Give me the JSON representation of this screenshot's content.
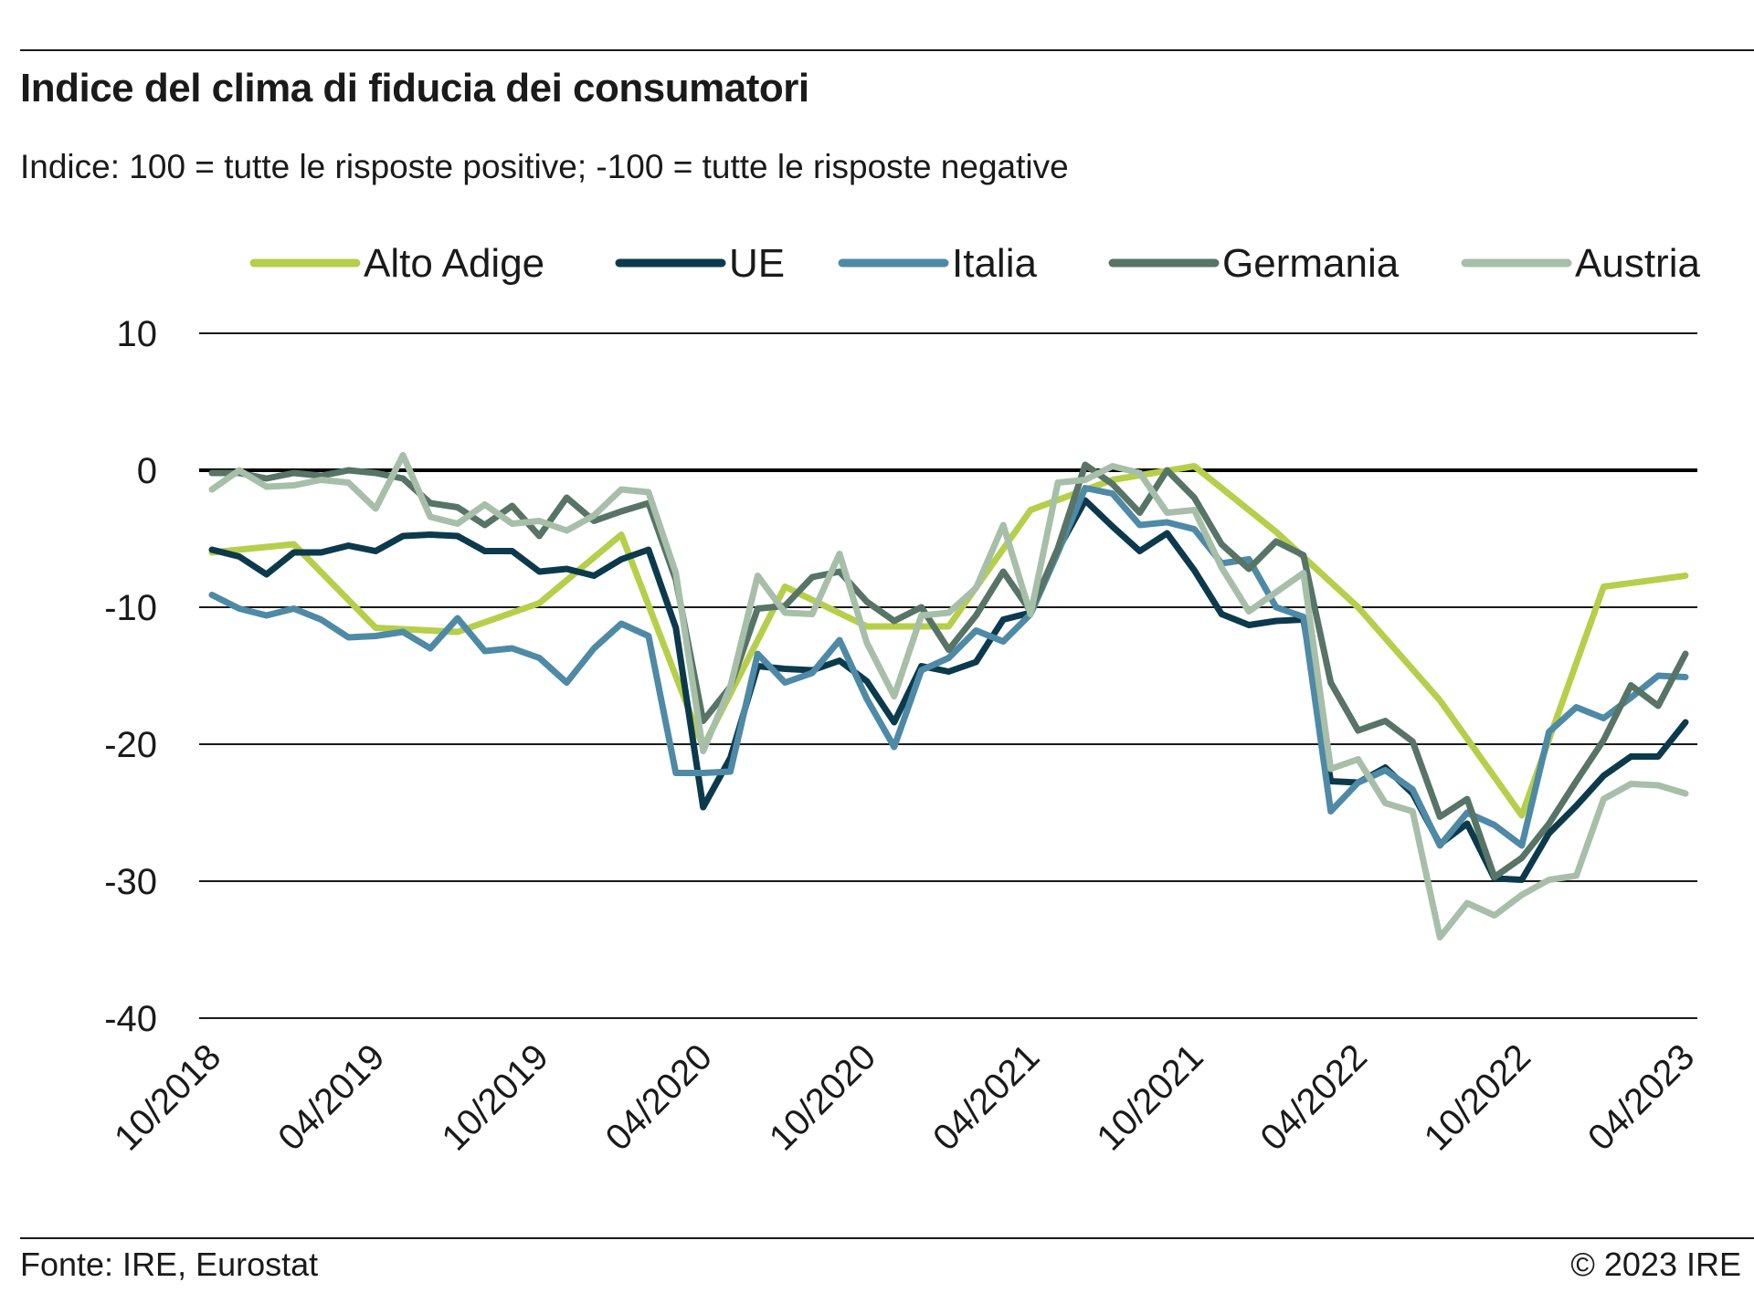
{
  "header": {
    "title": "Indice del clima di fiducia dei consumatori",
    "subtitle": "Indice: 100 = tutte le risposte positive; -100 =  tutte le risposte negative"
  },
  "footer": {
    "source": "Fonte: IRE, Eurostat",
    "copyright": "© 2023 IRE"
  },
  "chart_data": {
    "type": "line",
    "title": "Indice del clima di fiducia dei consumatori",
    "subtitle": "Indice: 100 = tutte le risposte positive; -100 =  tutte le risposte negative",
    "xlabel": "",
    "ylabel": "",
    "ylim": [
      -40,
      10
    ],
    "y_ticks": [
      10,
      0,
      -10,
      -20,
      -30,
      -40
    ],
    "y_tick_labels": [
      "10",
      "0",
      "-10",
      "-20",
      "-30",
      "-40"
    ],
    "x_start": "10/2018",
    "x_end": "04/2023",
    "x_ticks": [
      "10/2018",
      "04/2019",
      "10/2019",
      "04/2020",
      "10/2020",
      "04/2021",
      "10/2021",
      "04/2022",
      "10/2022",
      "04/2023"
    ],
    "zero_line": true,
    "grid": true,
    "legend_position": "top",
    "series": [
      {
        "name": "Alto Adige",
        "color": "#b5cf4a",
        "points": [
          [
            "10/2018",
            -6.0
          ],
          [
            "01/2019",
            -5.4
          ],
          [
            "04/2019",
            -11.5
          ],
          [
            "07/2019",
            -11.8
          ],
          [
            "10/2019",
            -9.7
          ],
          [
            "01/2020",
            -4.7
          ],
          [
            "04/2020",
            -20.2
          ],
          [
            "07/2020",
            -8.5
          ],
          [
            "10/2020",
            -11.4
          ],
          [
            "01/2021",
            -11.4
          ],
          [
            "04/2021",
            -2.9
          ],
          [
            "07/2021",
            -0.7
          ],
          [
            "10/2021",
            0.3
          ],
          [
            "01/2022",
            -4.5
          ],
          [
            "04/2022",
            -10.0
          ],
          [
            "07/2022",
            -16.8
          ],
          [
            "10/2022",
            -25.2
          ],
          [
            "01/2023",
            -8.5
          ],
          [
            "04/2023",
            -7.7
          ]
        ]
      },
      {
        "name": "UE",
        "color": "#0c3a4c",
        "points": [
          [
            "10/2018",
            -5.8
          ],
          [
            "11/2018",
            -6.3
          ],
          [
            "12/2018",
            -7.6
          ],
          [
            "01/2019",
            -6.0
          ],
          [
            "02/2019",
            -6.0
          ],
          [
            "03/2019",
            -5.5
          ],
          [
            "04/2019",
            -5.9
          ],
          [
            "05/2019",
            -4.8
          ],
          [
            "06/2019",
            -4.7
          ],
          [
            "07/2019",
            -4.8
          ],
          [
            "08/2019",
            -5.9
          ],
          [
            "09/2019",
            -5.9
          ],
          [
            "10/2019",
            -7.4
          ],
          [
            "11/2019",
            -7.2
          ],
          [
            "12/2019",
            -7.7
          ],
          [
            "01/2020",
            -6.5
          ],
          [
            "02/2020",
            -5.8
          ],
          [
            "03/2020",
            -11.5
          ],
          [
            "04/2020",
            -24.6
          ],
          [
            "05/2020",
            -21.0
          ],
          [
            "06/2020",
            -14.3
          ],
          [
            "07/2020",
            -14.5
          ],
          [
            "08/2020",
            -14.6
          ],
          [
            "09/2020",
            -13.9
          ],
          [
            "10/2020",
            -15.4
          ],
          [
            "11/2020",
            -18.4
          ],
          [
            "12/2020",
            -14.3
          ],
          [
            "01/2021",
            -14.7
          ],
          [
            "02/2021",
            -14.0
          ],
          [
            "03/2021",
            -10.9
          ],
          [
            "04/2021",
            -10.4
          ],
          [
            "05/2021",
            -5.8
          ],
          [
            "06/2021",
            -2.2
          ],
          [
            "07/2021",
            -4.1
          ],
          [
            "08/2021",
            -5.9
          ],
          [
            "09/2021",
            -4.6
          ],
          [
            "10/2021",
            -7.3
          ],
          [
            "11/2021",
            -10.5
          ],
          [
            "12/2021",
            -11.3
          ],
          [
            "01/2022",
            -11.0
          ],
          [
            "02/2022",
            -10.9
          ],
          [
            "03/2022",
            -22.7
          ],
          [
            "04/2022",
            -22.8
          ],
          [
            "05/2022",
            -21.7
          ],
          [
            "06/2022",
            -23.6
          ],
          [
            "07/2022",
            -27.3
          ],
          [
            "08/2022",
            -25.8
          ],
          [
            "09/2022",
            -29.8
          ],
          [
            "10/2022",
            -29.9
          ],
          [
            "11/2022",
            -26.5
          ],
          [
            "12/2022",
            -24.5
          ],
          [
            "01/2023",
            -22.3
          ],
          [
            "02/2023",
            -20.9
          ],
          [
            "03/2023",
            -20.9
          ],
          [
            "04/2023",
            -18.4
          ]
        ]
      },
      {
        "name": "Italia",
        "color": "#4e8aa6",
        "points": [
          [
            "10/2018",
            -9.1
          ],
          [
            "11/2018",
            -10.1
          ],
          [
            "12/2018",
            -10.6
          ],
          [
            "01/2019",
            -10.1
          ],
          [
            "02/2019",
            -10.9
          ],
          [
            "03/2019",
            -12.2
          ],
          [
            "04/2019",
            -12.1
          ],
          [
            "05/2019",
            -11.8
          ],
          [
            "06/2019",
            -13.0
          ],
          [
            "07/2019",
            -10.8
          ],
          [
            "08/2019",
            -13.2
          ],
          [
            "09/2019",
            -13.0
          ],
          [
            "10/2019",
            -13.7
          ],
          [
            "11/2019",
            -15.5
          ],
          [
            "12/2019",
            -13.0
          ],
          [
            "01/2020",
            -11.2
          ],
          [
            "02/2020",
            -12.1
          ],
          [
            "03/2020",
            -22.1
          ],
          [
            "04/2020",
            -22.1
          ],
          [
            "05/2020",
            -22.0
          ],
          [
            "06/2020",
            -13.4
          ],
          [
            "07/2020",
            -15.5
          ],
          [
            "08/2020",
            -14.8
          ],
          [
            "09/2020",
            -12.4
          ],
          [
            "10/2020",
            -16.7
          ],
          [
            "11/2020",
            -20.2
          ],
          [
            "12/2020",
            -14.6
          ],
          [
            "01/2021",
            -13.7
          ],
          [
            "02/2021",
            -11.7
          ],
          [
            "03/2021",
            -12.5
          ],
          [
            "04/2021",
            -10.5
          ],
          [
            "05/2021",
            -6.0
          ],
          [
            "06/2021",
            -1.3
          ],
          [
            "07/2021",
            -1.7
          ],
          [
            "08/2021",
            -4.0
          ],
          [
            "09/2021",
            -3.8
          ],
          [
            "10/2021",
            -4.3
          ],
          [
            "11/2021",
            -6.8
          ],
          [
            "12/2021",
            -6.5
          ],
          [
            "01/2022",
            -10.0
          ],
          [
            "02/2022",
            -10.7
          ],
          [
            "03/2022",
            -24.9
          ],
          [
            "04/2022",
            -22.8
          ],
          [
            "05/2022",
            -21.9
          ],
          [
            "06/2022",
            -23.3
          ],
          [
            "07/2022",
            -27.4
          ],
          [
            "08/2022",
            -25.0
          ],
          [
            "09/2022",
            -25.9
          ],
          [
            "10/2022",
            -27.4
          ],
          [
            "11/2022",
            -19.1
          ],
          [
            "12/2022",
            -17.3
          ],
          [
            "01/2023",
            -18.1
          ],
          [
            "02/2023",
            -16.6
          ],
          [
            "03/2023",
            -15.0
          ],
          [
            "04/2023",
            -15.1
          ]
        ]
      },
      {
        "name": "Germania",
        "color": "#577466",
        "points": [
          [
            "10/2018",
            -0.2
          ],
          [
            "11/2018",
            -0.2
          ],
          [
            "12/2018",
            -0.6
          ],
          [
            "01/2019",
            -0.2
          ],
          [
            "02/2019",
            -0.4
          ],
          [
            "03/2019",
            0.0
          ],
          [
            "04/2019",
            -0.2
          ],
          [
            "05/2019",
            -0.6
          ],
          [
            "06/2019",
            -2.4
          ],
          [
            "07/2019",
            -2.7
          ],
          [
            "08/2019",
            -4.0
          ],
          [
            "09/2019",
            -2.6
          ],
          [
            "10/2019",
            -4.8
          ],
          [
            "11/2019",
            -2.0
          ],
          [
            "12/2019",
            -3.7
          ],
          [
            "01/2020",
            -3.0
          ],
          [
            "02/2020",
            -2.4
          ],
          [
            "03/2020",
            -8.0
          ],
          [
            "04/2020",
            -18.3
          ],
          [
            "05/2020",
            -15.8
          ],
          [
            "06/2020",
            -10.1
          ],
          [
            "07/2020",
            -9.9
          ],
          [
            "08/2020",
            -7.8
          ],
          [
            "09/2020",
            -7.4
          ],
          [
            "10/2020",
            -9.6
          ],
          [
            "11/2020",
            -11.0
          ],
          [
            "12/2020",
            -10.0
          ],
          [
            "01/2021",
            -13.1
          ],
          [
            "02/2021",
            -10.6
          ],
          [
            "03/2021",
            -7.4
          ],
          [
            "04/2021",
            -10.3
          ],
          [
            "05/2021",
            -5.7
          ],
          [
            "06/2021",
            0.4
          ],
          [
            "07/2021",
            -1.0
          ],
          [
            "08/2021",
            -3.1
          ],
          [
            "09/2021",
            0.0
          ],
          [
            "10/2021",
            -2.0
          ],
          [
            "11/2021",
            -5.4
          ],
          [
            "12/2021",
            -7.2
          ],
          [
            "01/2022",
            -5.2
          ],
          [
            "02/2022",
            -6.2
          ],
          [
            "03/2022",
            -15.5
          ],
          [
            "04/2022",
            -19.0
          ],
          [
            "05/2022",
            -18.3
          ],
          [
            "06/2022",
            -19.8
          ],
          [
            "07/2022",
            -25.3
          ],
          [
            "08/2022",
            -24.0
          ],
          [
            "09/2022",
            -29.7
          ],
          [
            "10/2022",
            -28.3
          ],
          [
            "11/2022",
            -25.8
          ],
          [
            "12/2022",
            -22.7
          ],
          [
            "01/2023",
            -19.7
          ],
          [
            "02/2023",
            -15.7
          ],
          [
            "03/2023",
            -17.2
          ],
          [
            "04/2023",
            -13.4
          ]
        ]
      },
      {
        "name": "Austria",
        "color": "#a7bfa9",
        "points": [
          [
            "10/2018",
            -1.4
          ],
          [
            "11/2018",
            0.0
          ],
          [
            "12/2018",
            -1.2
          ],
          [
            "01/2019",
            -1.1
          ],
          [
            "02/2019",
            -0.7
          ],
          [
            "03/2019",
            -0.9
          ],
          [
            "04/2019",
            -2.8
          ],
          [
            "05/2019",
            1.1
          ],
          [
            "06/2019",
            -3.4
          ],
          [
            "07/2019",
            -3.9
          ],
          [
            "08/2019",
            -2.5
          ],
          [
            "09/2019",
            -3.9
          ],
          [
            "10/2019",
            -3.7
          ],
          [
            "11/2019",
            -4.4
          ],
          [
            "12/2019",
            -3.3
          ],
          [
            "01/2020",
            -1.4
          ],
          [
            "02/2020",
            -1.6
          ],
          [
            "03/2020",
            -7.5
          ],
          [
            "04/2020",
            -20.5
          ],
          [
            "05/2020",
            -15.8
          ],
          [
            "06/2020",
            -7.7
          ],
          [
            "07/2020",
            -10.4
          ],
          [
            "08/2020",
            -10.5
          ],
          [
            "09/2020",
            -6.1
          ],
          [
            "10/2020",
            -12.6
          ],
          [
            "11/2020",
            -16.5
          ],
          [
            "12/2020",
            -10.6
          ],
          [
            "01/2021",
            -10.4
          ],
          [
            "02/2021",
            -8.6
          ],
          [
            "03/2021",
            -4.0
          ],
          [
            "04/2021",
            -10.5
          ],
          [
            "05/2021",
            -0.9
          ],
          [
            "06/2021",
            -0.7
          ],
          [
            "07/2021",
            0.3
          ],
          [
            "08/2021",
            -0.2
          ],
          [
            "09/2021",
            -3.1
          ],
          [
            "10/2021",
            -2.9
          ],
          [
            "11/2021",
            -7.1
          ],
          [
            "12/2021",
            -10.3
          ],
          [
            "01/2022",
            -8.9
          ],
          [
            "02/2022",
            -7.5
          ],
          [
            "03/2022",
            -21.8
          ],
          [
            "04/2022",
            -21.1
          ],
          [
            "05/2022",
            -24.3
          ],
          [
            "06/2022",
            -24.9
          ],
          [
            "07/2022",
            -34.1
          ],
          [
            "08/2022",
            -31.6
          ],
          [
            "09/2022",
            -32.5
          ],
          [
            "10/2022",
            -31.0
          ],
          [
            "11/2022",
            -29.9
          ],
          [
            "12/2022",
            -29.6
          ],
          [
            "01/2023",
            -24.0
          ],
          [
            "02/2023",
            -22.9
          ],
          [
            "03/2023",
            -23.0
          ],
          [
            "04/2023",
            -23.6
          ]
        ]
      }
    ]
  }
}
